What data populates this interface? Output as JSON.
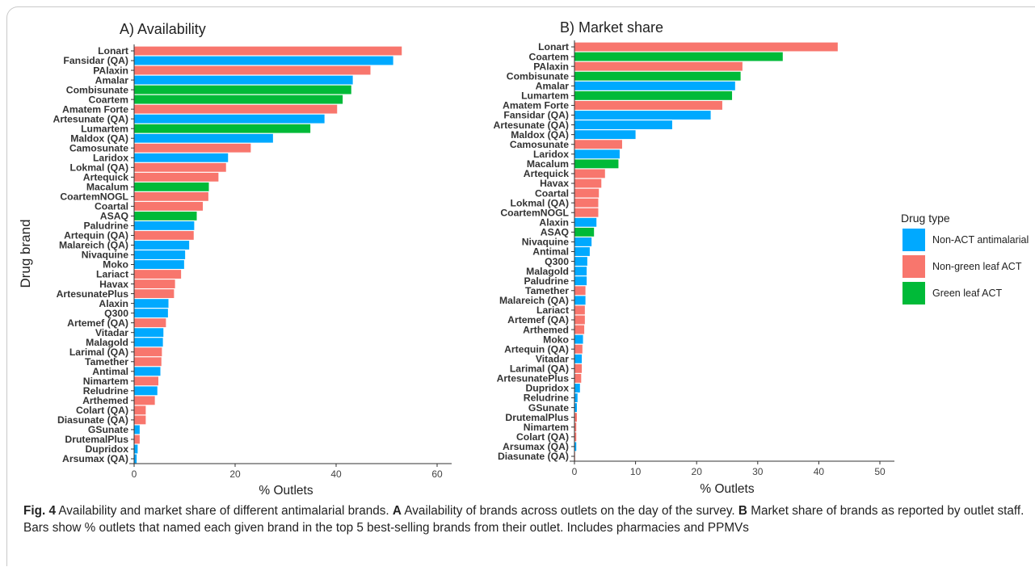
{
  "chart_data": [
    {
      "type": "bar",
      "orientation": "horizontal",
      "title": "A) Availability",
      "xlabel": "% Outlets",
      "ylabel": "Drug brand",
      "xlim": [
        0,
        60
      ],
      "xticks": [
        0,
        20,
        40,
        60
      ],
      "categories": [
        "Lonart",
        "Fansidar (QA)",
        "PAlaxin",
        "Amalar",
        "Combisunate",
        "Coartem",
        "Amatem Forte",
        "Artesunate (QA)",
        "Lumartem",
        "Maldox (QA)",
        "Camosunate",
        "Laridox",
        "Lokmal (QA)",
        "Artequick",
        "Macalum",
        "CoartemNOGL",
        "Coartal",
        "ASAQ",
        "Paludrine",
        "Artequin (QA)",
        "Malareich (QA)",
        "Nivaquine",
        "Moko",
        "Lariact",
        "Havax",
        "ArtesunatePlus",
        "Alaxin",
        "Q300",
        "Artemef (QA)",
        "Vitadar",
        "Malagold",
        "Larimal (QA)",
        "Tamether",
        "Antimal",
        "Nimartem",
        "Reludrine",
        "Arthemed",
        "Colart (QA)",
        "Diasunate (QA)",
        "GSunate",
        "DrutemalPlus",
        "Dupridox",
        "Arsumax (QA)"
      ],
      "values": [
        53,
        51.3,
        46.8,
        43.3,
        43,
        41.3,
        40.2,
        37.7,
        34.9,
        27.5,
        23.1,
        18.6,
        18.2,
        16.7,
        14.8,
        14.7,
        13.6,
        12.4,
        11.9,
        11.8,
        10.9,
        10.1,
        9.9,
        9.3,
        8.1,
        7.9,
        6.8,
        6.7,
        6.3,
        5.8,
        5.7,
        5.5,
        5.4,
        5.2,
        4.8,
        4.6,
        4.1,
        2.3,
        2.3,
        1.1,
        1.1,
        0.7,
        0.5
      ],
      "types": [
        "n",
        "a",
        "n",
        "a",
        "g",
        "g",
        "n",
        "a",
        "g",
        "a",
        "n",
        "a",
        "n",
        "n",
        "g",
        "n",
        "n",
        "g",
        "a",
        "n",
        "a",
        "a",
        "a",
        "n",
        "n",
        "n",
        "a",
        "a",
        "n",
        "a",
        "a",
        "n",
        "n",
        "a",
        "n",
        "a",
        "n",
        "n",
        "n",
        "a",
        "n",
        "a",
        "a"
      ]
    },
    {
      "type": "bar",
      "orientation": "horizontal",
      "title": "B) Market share",
      "xlabel": "% Outlets",
      "ylabel": "",
      "xlim": [
        0,
        50
      ],
      "xticks": [
        0,
        10,
        20,
        30,
        40,
        50
      ],
      "categories": [
        "Lonart",
        "Coartem",
        "PAlaxin",
        "Combisunate",
        "Amalar",
        "Lumartem",
        "Amatem Forte",
        "Fansidar (QA)",
        "Artesunate (QA)",
        "Maldox (QA)",
        "Camosunate",
        "Laridox",
        "Macalum",
        "Artequick",
        "Havax",
        "Coartal",
        "Lokmal (QA)",
        "CoartemNOGL",
        "Alaxin",
        "ASAQ",
        "Nivaquine",
        "Antimal",
        "Q300",
        "Malagold",
        "Paludrine",
        "Tamether",
        "Malareich (QA)",
        "Lariact",
        "Artemef (QA)",
        "Arthemed",
        "Moko",
        "Artequin (QA)",
        "Vitadar",
        "Larimal (QA)",
        "ArtesunatePlus",
        "Dupridox",
        "Reludrine",
        "GSunate",
        "DrutemalPlus",
        "Nimartem",
        "Colart (QA)",
        "Arsumax (QA)",
        "Diasunate (QA)"
      ],
      "values": [
        43.1,
        34.1,
        27.5,
        27.2,
        26.3,
        25.8,
        24.2,
        22.3,
        16,
        10,
        7.8,
        7.4,
        7.2,
        5,
        4.4,
        4,
        3.9,
        3.9,
        3.6,
        3.2,
        2.8,
        2.5,
        2.1,
        2,
        2,
        1.8,
        1.8,
        1.7,
        1.7,
        1.6,
        1.4,
        1.3,
        1.2,
        1.2,
        1.1,
        0.9,
        0.5,
        0.4,
        0.4,
        0.3,
        0.3,
        0.3,
        0.1
      ],
      "types": [
        "n",
        "g",
        "n",
        "g",
        "a",
        "g",
        "n",
        "a",
        "a",
        "a",
        "n",
        "a",
        "g",
        "n",
        "n",
        "n",
        "n",
        "n",
        "a",
        "g",
        "a",
        "a",
        "a",
        "a",
        "a",
        "n",
        "a",
        "n",
        "n",
        "n",
        "a",
        "n",
        "a",
        "n",
        "n",
        "a",
        "a",
        "a",
        "n",
        "n",
        "n",
        "a",
        "n"
      ]
    }
  ],
  "legend": {
    "title": "Drug type",
    "items": [
      {
        "key": "a",
        "label": "Non-ACT antimalarial",
        "color": "#00a9ff"
      },
      {
        "key": "n",
        "label": "Non-green leaf ACT",
        "color": "#f8766d"
      },
      {
        "key": "g",
        "label": "Green leaf ACT",
        "color": "#00ba38"
      }
    ]
  },
  "caption": {
    "fig_label": "Fig. 4",
    "intro": "Availability and market share of different antimalarial brands.",
    "a_label": "A",
    "a_text": "Availability of brands across outlets on the day of the survey.",
    "b_label": "B",
    "b_text": "Market share of brands as reported by outlet staff. Bars show % outlets that named each given brand in the top 5 best-selling brands from their outlet. Includes pharmacies and PPMVs"
  }
}
